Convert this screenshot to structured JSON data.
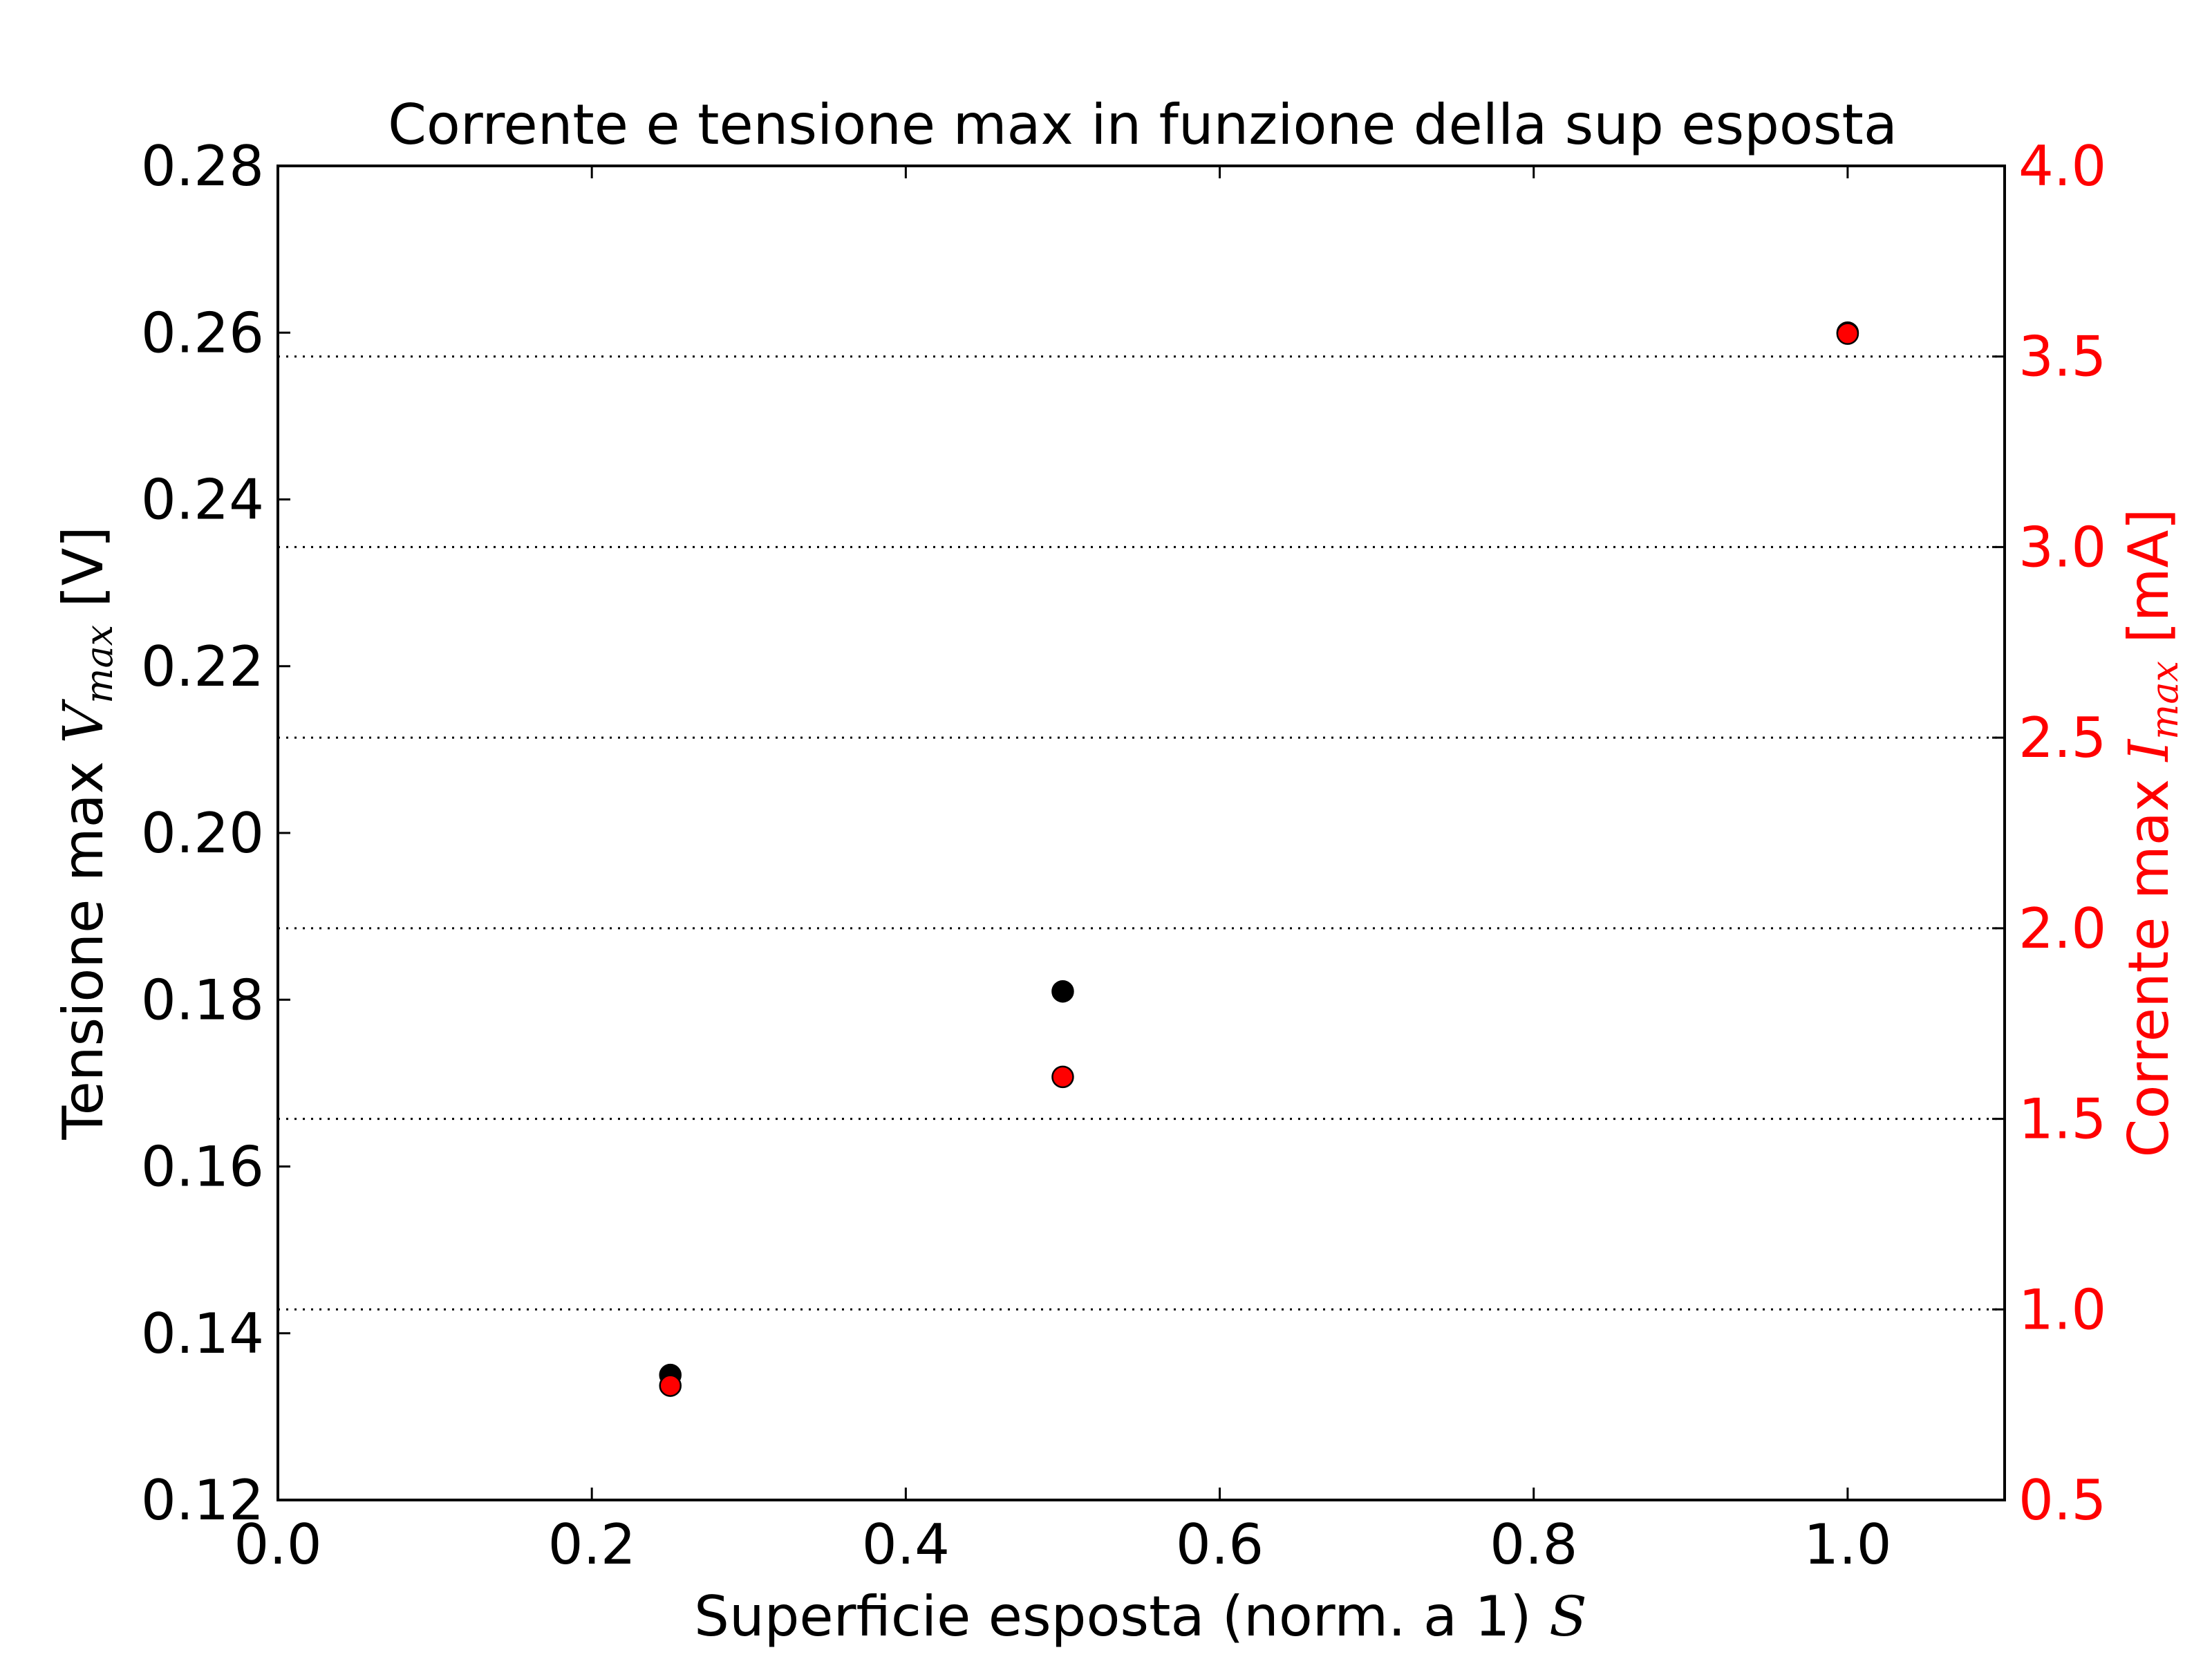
{
  "chart_data": {
    "type": "scatter",
    "title": "Corrente e tensione max in funzione della sup esposta",
    "xlabel": {
      "text": "Superficie esposta (norm. a 1) ",
      "symbol": "S"
    },
    "ylabel_left": {
      "text": "Tensione max ",
      "symbol": "V",
      "subscript": "max",
      "unit": " [V]",
      "color": "#000000"
    },
    "ylabel_right": {
      "text": "Corrente max ",
      "symbol": "I",
      "subscript": "max",
      "unit": " [mA]",
      "color": "#ff0000"
    },
    "xlim": [
      0.0,
      1.1
    ],
    "ylim_left": [
      0.12,
      0.28
    ],
    "ylim_right": [
      0.5,
      4.0
    ],
    "xticks": [
      "0.0",
      "0.2",
      "0.4",
      "0.6",
      "0.8",
      "1.0"
    ],
    "yticks_left": [
      "0.12",
      "0.14",
      "0.16",
      "0.18",
      "0.20",
      "0.22",
      "0.24",
      "0.26",
      "0.28"
    ],
    "yticks_right": [
      "0.5",
      "1.0",
      "1.5",
      "2.0",
      "2.5",
      "3.0",
      "3.5",
      "4.0"
    ],
    "grid": "horizontal dotted at right-axis ticks",
    "series": [
      {
        "axis": "left",
        "color": "#000000",
        "points": [
          {
            "x": 0.25,
            "y": 0.135
          },
          {
            "x": 0.5,
            "y": 0.181
          },
          {
            "x": 1.0,
            "y": 0.26
          }
        ]
      },
      {
        "axis": "right",
        "color": "#ff0000",
        "points": [
          {
            "x": 0.25,
            "y": 0.8
          },
          {
            "x": 0.5,
            "y": 1.61
          },
          {
            "x": 1.0,
            "y": 3.56
          }
        ]
      }
    ]
  }
}
